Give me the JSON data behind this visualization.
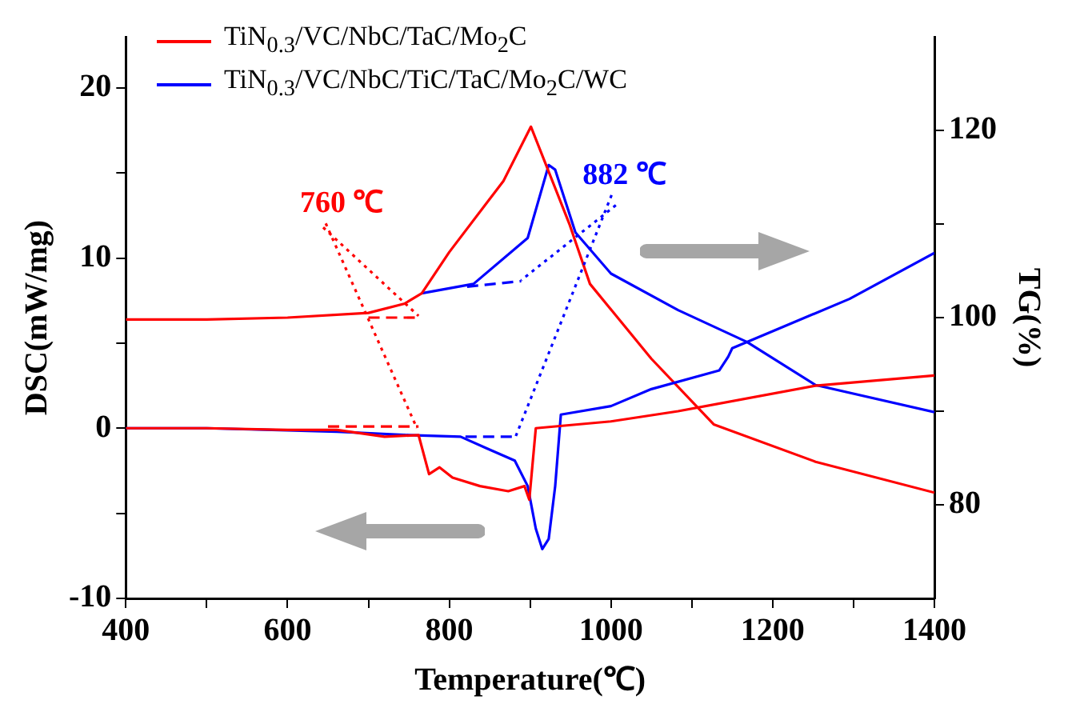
{
  "chart_data": {
    "type": "line",
    "xlabel": "Temperature(℃)",
    "ylabel": "DSC(mW/mg)",
    "y2label": "TG(%)",
    "xlim": [
      400,
      1400
    ],
    "xticks": [
      400,
      {
        "value": 500,
        "label": null
      },
      600,
      {
        "value": 700,
        "label": null
      },
      800,
      {
        "value": 900,
        "label": null
      },
      1000,
      {
        "value": 1100,
        "label": null
      },
      1200,
      {
        "value": 1300,
        "label": null
      },
      1400
    ],
    "ylim": [
      -10,
      23
    ],
    "yticks": [
      -10,
      {
        "value": -5,
        "label": null
      },
      0,
      {
        "value": 5,
        "label": null
      },
      10,
      {
        "value": 15,
        "label": null
      },
      20
    ],
    "y2lim": [
      70,
      130
    ],
    "y2ticks": [
      80,
      {
        "value": 90,
        "label": null
      },
      100,
      {
        "value": 110,
        "label": null
      },
      120
    ],
    "grid": false,
    "legend": "top left",
    "marker": "none",
    "line_style": "solid",
    "annotations": [
      {
        "text": "760 ℃",
        "x": 760,
        "y": 0
      },
      {
        "text": "882 ℃",
        "x": 882,
        "y": -0.5
      }
    ],
    "series": [
      {
        "name": "TiN$_{0.3}$/VC/NbC/TaC/Mo$_{2}$C",
        "color": "#ff0000",
        "x": [
          400,
          500,
          600,
          661,
          720,
          762,
          775,
          788,
          804,
          838,
          873,
          893,
          899,
          907,
          1000,
          1083,
          1253,
          1400
        ],
        "values": [
          0,
          0,
          -0.1,
          -0.1,
          -0.5,
          -0.4,
          -2.7,
          -2.3,
          -2.9,
          -3.4,
          -3.7,
          -3.4,
          -4.2,
          0,
          0.4,
          1.0,
          2.5,
          3.1
        ]
      },
      {
        "name": "TiN$_{0.3}$/VC/NbC/TiC/TaC/Mo$_{2}$C/WC",
        "color": "#0000ff",
        "x": [
          400,
          500,
          661,
          750,
          814,
          847,
          881,
          897,
          907,
          915,
          923,
          931,
          938,
          1000,
          1050,
          1134,
          1145,
          1150,
          1210,
          1295,
          1400
        ],
        "values": [
          0,
          0,
          -0.2,
          -0.4,
          -0.5,
          -1.2,
          -1.9,
          -3.4,
          -5.9,
          -7.1,
          -6.5,
          -3.4,
          0.8,
          1.3,
          2.3,
          3.4,
          4.2,
          4.7,
          5.9,
          7.6,
          10.3
        ]
      },
      {
        "color": "#ff0000",
        "axis": "y2",
        "x": [
          400,
          500,
          600,
          700,
          745,
          766,
          800,
          867,
          901,
          949,
          974,
          1050,
          1127,
          1253,
          1400
        ],
        "values": [
          99.8,
          99.8,
          100,
          100.5,
          101.5,
          102.6,
          107,
          114.6,
          120.4,
          109.9,
          103.6,
          95.6,
          88.6,
          84.6,
          81.3
        ]
      },
      {
        "color": "#0000ff",
        "axis": "y2",
        "x": [
          766,
          830,
          897,
          923,
          931,
          956,
          1000,
          1083,
          1168,
          1253,
          1400
        ],
        "values": [
          102.6,
          103.6,
          108.5,
          116.3,
          115.8,
          109.1,
          104.7,
          100.8,
          97.4,
          92.8,
          89.9
        ]
      },
      {
        "color": "#ff0000",
        "line_style": "dashed",
        "x": [
          650,
          762
        ],
        "values": [
          0.1,
          0.1
        ]
      },
      {
        "color": "#ff0000",
        "line_style": "dashed",
        "axis": "y2",
        "x": [
          700,
          762
        ],
        "values": [
          100,
          100
        ]
      },
      {
        "color": "#0000ff",
        "line_style": "dashed",
        "x": [
          820,
          882
        ],
        "values": [
          -0.5,
          -0.5
        ]
      },
      {
        "color": "#0000ff",
        "line_style": "dashed",
        "axis": "y2",
        "x": [
          822,
          889
        ],
        "values": [
          103.3,
          103.9
        ]
      },
      {
        "color": "#ff0000",
        "line_style": "dotted",
        "x": [
          644,
          762
        ],
        "values": [
          11.8,
          6.6
        ]
      },
      {
        "color": "#0000ff",
        "line_style": "dotted",
        "x": [
          1006,
          889
        ],
        "values": [
          13.1,
          8.7
        ]
      }
    ]
  }
}
